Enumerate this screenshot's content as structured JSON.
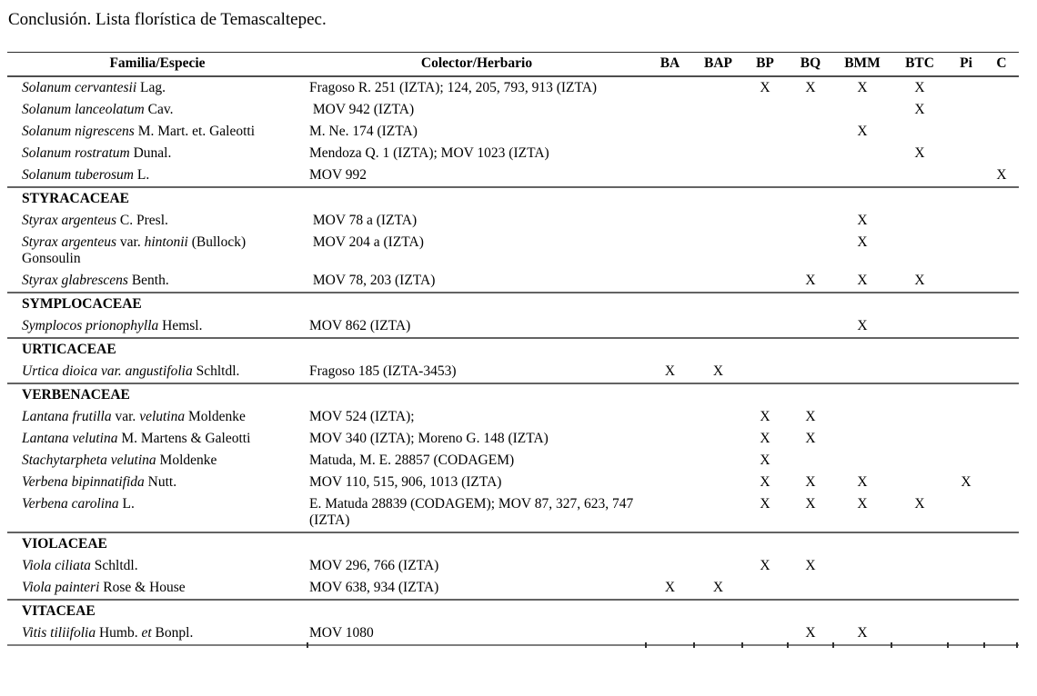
{
  "title": "Conclusión. Lista florística de Temascaltepec.",
  "table": {
    "headers": {
      "family": "Familia/Especie",
      "collector": "Colector/Herbario",
      "marks": [
        "BA",
        "BAP",
        "BP",
        "BQ",
        "BMM",
        "BTC",
        "Pi",
        "C"
      ]
    },
    "mark_symbol": "X",
    "sections": [
      {
        "family": null,
        "rows": [
          {
            "species": [
              [
                "Solanum cervantesii",
                true
              ],
              [
                " Lag.",
                false
              ]
            ],
            "collector": "Fragoso R. 251 (IZTA); 124, 205, 793, 913 (IZTA)",
            "marks": [
              "BP",
              "BQ",
              "BMM",
              "BTC"
            ]
          },
          {
            "species": [
              [
                "Solanum lanceolatum",
                true
              ],
              [
                " Cav.",
                false
              ]
            ],
            "collector": " MOV 942 (IZTA)",
            "marks": [
              "BTC"
            ]
          },
          {
            "species": [
              [
                "Solanum nigrescens",
                true
              ],
              [
                " M. Mart. et. Galeotti",
                false
              ]
            ],
            "collector": "M. Ne. 174 (IZTA)",
            "marks": [
              "BMM"
            ]
          },
          {
            "species": [
              [
                "Solanum rostratum",
                true
              ],
              [
                " Dunal.",
                false
              ]
            ],
            "collector": "Mendoza Q. 1 (IZTA); MOV 1023 (IZTA)",
            "marks": [
              "BTC"
            ]
          },
          {
            "species": [
              [
                "Solanum tuberosum",
                true
              ],
              [
                " L.",
                false
              ]
            ],
            "collector": "MOV 992",
            "marks": [
              "C"
            ]
          }
        ]
      },
      {
        "family": "STYRACACEAE",
        "rows": [
          {
            "species": [
              [
                "Styrax argenteus",
                true
              ],
              [
                " C. Presl.",
                false
              ]
            ],
            "collector": " MOV 78 a (IZTA)",
            "marks": [
              "BMM"
            ]
          },
          {
            "species": [
              [
                "Styrax argenteus",
                true
              ],
              [
                " var. ",
                false
              ],
              [
                "hintonii",
                true
              ],
              [
                " (Bullock) Gonsoulin",
                false
              ]
            ],
            "collector": " MOV 204 a (IZTA)",
            "marks": [
              "BMM"
            ]
          },
          {
            "species": [
              [
                "Styrax glabrescens",
                true
              ],
              [
                " Benth.",
                false
              ]
            ],
            "collector": " MOV 78, 203 (IZTA)",
            "marks": [
              "BQ",
              "BMM",
              "BTC"
            ]
          }
        ]
      },
      {
        "family": "SYMPLOCACEAE",
        "rows": [
          {
            "species": [
              [
                "Symplocos prionophylla",
                true
              ],
              [
                " Hemsl.",
                false
              ]
            ],
            "collector": "MOV 862 (IZTA)",
            "marks": [
              "BMM"
            ]
          }
        ]
      },
      {
        "family": "URTICACEAE",
        "rows": [
          {
            "species": [
              [
                "Urtica dioica var. angustifolia",
                true
              ],
              [
                " Schltdl.",
                false
              ]
            ],
            "collector": "Fragoso 185 (IZTA-3453)",
            "marks": [
              "BA",
              "BAP"
            ]
          }
        ]
      },
      {
        "family": "VERBENACEAE",
        "rows": [
          {
            "species": [
              [
                "Lantana frutilla",
                true
              ],
              [
                " var. ",
                false
              ],
              [
                "velutina",
                true
              ],
              [
                " Moldenke",
                false
              ]
            ],
            "collector": "MOV 524 (IZTA);",
            "marks": [
              "BP",
              "BQ"
            ]
          },
          {
            "species": [
              [
                "Lantana velutina",
                true
              ],
              [
                " M. Martens & Galeotti",
                false
              ]
            ],
            "collector": "MOV 340 (IZTA); Moreno G. 148 (IZTA)",
            "marks": [
              "BP",
              "BQ"
            ]
          },
          {
            "species": [
              [
                "Stachytarpheta velutina",
                true
              ],
              [
                " Moldenke",
                false
              ]
            ],
            "collector": "Matuda, M. E. 28857 (CODAGEM)",
            "marks": [
              "BP"
            ]
          },
          {
            "species": [
              [
                "Verbena bipinnatifida",
                true
              ],
              [
                " Nutt.",
                false
              ]
            ],
            "collector": "MOV 110, 515, 906, 1013 (IZTA)",
            "marks": [
              "BP",
              "BQ",
              "BMM",
              "Pi"
            ]
          },
          {
            "species": [
              [
                "Verbena carolina",
                true
              ],
              [
                " L.",
                false
              ]
            ],
            "collector": "E. Matuda 28839 (CODAGEM); MOV 87, 327, 623, 747 (IZTA)",
            "marks": [
              "BP",
              "BQ",
              "BMM",
              "BTC"
            ]
          }
        ]
      },
      {
        "family": "VIOLACEAE",
        "rows": [
          {
            "species": [
              [
                "Viola ciliata",
                true
              ],
              [
                " Schltdl.",
                false
              ]
            ],
            "collector": "MOV 296, 766 (IZTA)",
            "marks": [
              "BP",
              "BQ"
            ]
          },
          {
            "species": [
              [
                "Viola painteri",
                true
              ],
              [
                " Rose & House",
                false
              ]
            ],
            "collector": "MOV 638, 934 (IZTA)",
            "marks": [
              "BA",
              "BAP"
            ]
          }
        ]
      },
      {
        "family": "VITACEAE",
        "rows": [
          {
            "species": [
              [
                "Vitis tiliifolia",
                true
              ],
              [
                " Humb. ",
                false
              ],
              [
                "et",
                true
              ],
              [
                " Bonpl.",
                false
              ]
            ],
            "collector": "MOV 1080",
            "marks": [
              "BQ",
              "BMM"
            ]
          }
        ]
      }
    ]
  }
}
